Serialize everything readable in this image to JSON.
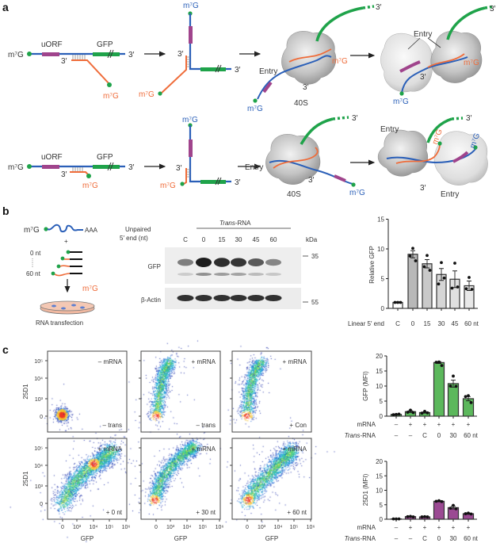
{
  "panel_labels": {
    "a": "a",
    "b": "b",
    "c": "c"
  },
  "colors": {
    "mrna_strand": "#2a5fb8",
    "trans_strand": "#ef6c3a",
    "cap_dot": "#1fa34a",
    "uorf": "#a0448c",
    "gfp_orf": "#1fa34a",
    "ribosome": "#bdbdbd",
    "gfp_bar": "#5cb85c",
    "d1_bar": "#9b4a93"
  },
  "a": {
    "cap": "m⁷G",
    "cap_short": "m⁷G",
    "uorf": "uORF",
    "gfp": "GFP",
    "three_prime": "3′",
    "entry": "Entry",
    "ribosome_label": "40S"
  },
  "b": {
    "schematic": {
      "cap": "m⁷G",
      "polyA": "AAA",
      "plus": "+",
      "len_min": "0 nt",
      "len_max": "60 nt",
      "trans_cap": "m⁷G",
      "caption": "RNA transfection"
    },
    "blot": {
      "row_header_1": "Unpaired",
      "row_header_2": "5′ end (nt)",
      "group_label_italic": "Trans",
      "group_label_rest": "-RNA",
      "lanes": [
        "C",
        "0",
        "15",
        "30",
        "45",
        "60"
      ],
      "kda_label": "kDa",
      "marker_35": "35",
      "marker_55": "55",
      "gfp_label": "GFP",
      "actin_label": "β-Actin"
    }
  },
  "c": {
    "flow_panels": [
      {
        "top": "– mRNA",
        "bottom": "– trans"
      },
      {
        "top": "+ mRNA",
        "bottom": "– trans"
      },
      {
        "top": "+ mRNA",
        "bottom": "+ Con"
      },
      {
        "top": "+ mRNA",
        "bottom": "+ 0 nt"
      },
      {
        "top": "+ mRNA",
        "bottom": "+ 30 nt"
      },
      {
        "top": "+ mRNA",
        "bottom": "+ 60 nt"
      }
    ],
    "y_axis_label": "25D1",
    "x_axis_label": "GFP",
    "y_ticks": [
      "10⁵",
      "10⁴",
      "10³",
      "0"
    ],
    "x_ticks": [
      "0",
      "10³",
      "10⁴",
      "10⁵",
      "10⁶"
    ]
  },
  "chart_data": [
    {
      "type": "bar",
      "panel": "b",
      "ylabel": "Relative GFP",
      "xlabel": "Linear 5′ end",
      "categories": [
        "C",
        "0",
        "15",
        "30",
        "45",
        "60 nt"
      ],
      "values": [
        1.0,
        9.1,
        7.5,
        5.7,
        4.9,
        3.8
      ],
      "errors": [
        0.1,
        0.6,
        0.7,
        1.0,
        1.4,
        0.8
      ],
      "points": [
        [
          1.0,
          1.0,
          1.0
        ],
        [
          10.1,
          8.8,
          8.0
        ],
        [
          8.9,
          7.0,
          6.4
        ],
        [
          7.7,
          4.1,
          5.1
        ],
        [
          7.6,
          3.4,
          3.6
        ],
        [
          5.2,
          3.3,
          3.2
        ]
      ],
      "ylim": [
        0,
        15
      ],
      "yticks": [
        "0",
        "5",
        "10",
        "15"
      ],
      "bar_colors": [
        "#ffffff",
        "#b8b8b8",
        "#c9c9c9",
        "#d6d6d6",
        "#e0e0e0",
        "#e8e8e8"
      ],
      "grid": false
    },
    {
      "type": "bar",
      "panel": "c",
      "ylabel": "GFP (MFI)",
      "row_labels": {
        "mrna": "mRNA",
        "trans_italic": "Trans",
        "trans_rest": "-RNA"
      },
      "mrna": [
        "–",
        "+",
        "+",
        "+",
        "+",
        "+"
      ],
      "categories": [
        "–",
        "–",
        "C",
        "0",
        "30",
        "60 nt"
      ],
      "values": [
        0.6,
        1.5,
        1.2,
        17.8,
        10.8,
        5.8
      ],
      "errors": [
        0.1,
        0.3,
        0.2,
        0.3,
        1.2,
        0.7
      ],
      "points": [
        [
          0.6,
          0.5,
          0.7
        ],
        [
          2.0,
          1.3,
          1.2
        ],
        [
          1.6,
          1.0,
          1.1
        ],
        [
          18.0,
          17.9,
          16.8
        ],
        [
          13.3,
          10.0,
          9.9
        ],
        [
          6.8,
          6.5,
          4.5
        ]
      ],
      "ylim": [
        0,
        20
      ],
      "yticks": [
        "0",
        "5",
        "10",
        "15",
        "20"
      ],
      "bar_color": "#5cb85c",
      "grid": false
    },
    {
      "type": "bar",
      "panel": "c",
      "ylabel": "25D1 (MFI)",
      "row_labels": {
        "mrna": "mRNA",
        "trans_italic": "Trans",
        "trans_rest": "-RNA"
      },
      "mrna": [
        "–",
        "+",
        "+",
        "+",
        "+",
        "+"
      ],
      "categories": [
        "–",
        "–",
        "C",
        "0",
        "30",
        "60 nt"
      ],
      "values": [
        0.1,
        0.9,
        0.8,
        6.2,
        4.0,
        1.9
      ],
      "errors": [
        0.05,
        0.1,
        0.1,
        0.2,
        0.5,
        0.2
      ],
      "points": [
        [
          0.1,
          0.1,
          0.1
        ],
        [
          1.0,
          0.9,
          0.8
        ],
        [
          0.9,
          0.8,
          0.8
        ],
        [
          6.4,
          6.2,
          6.1
        ],
        [
          4.8,
          3.8,
          3.6
        ],
        [
          2.1,
          1.9,
          1.8
        ]
      ],
      "ylim": [
        0,
        20
      ],
      "yticks": [
        "0",
        "5",
        "10",
        "15",
        "20"
      ],
      "bar_color": "#9b4a93",
      "grid": false
    }
  ]
}
